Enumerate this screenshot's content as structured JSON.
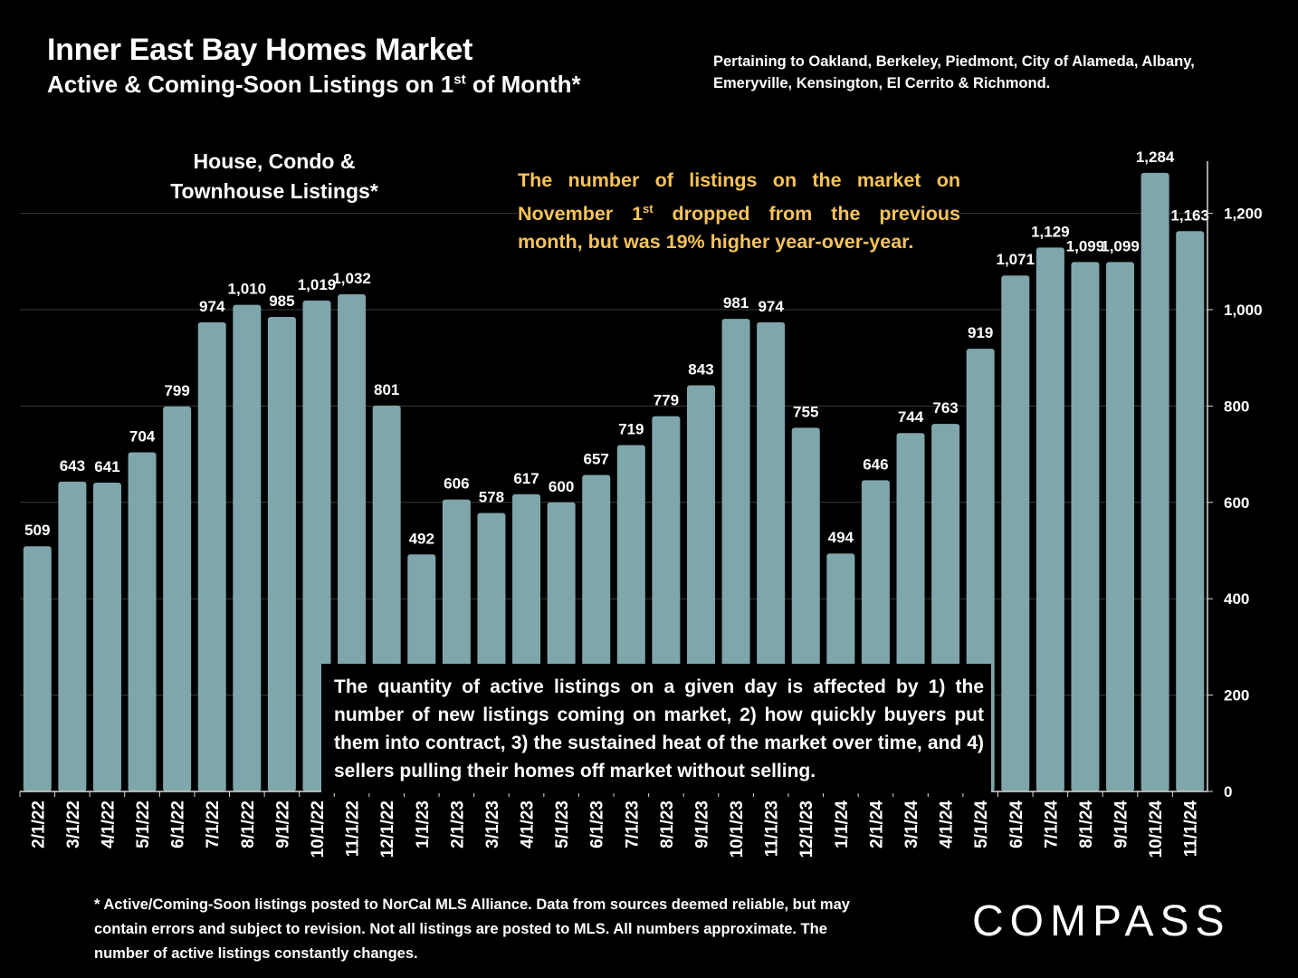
{
  "title": "Inner East Bay Homes Market",
  "subtitle": {
    "prefix": "Active & Coming-Soon Listings on 1",
    "sup": "st",
    "suffix": " of Month*"
  },
  "pertaining_note": "Pertaining to Oakland, Berkeley, Piedmont, City of Alameda, Albany, Emeryville, Kensington, El Cerrito & Richmond.",
  "series_label_line1": "House, Condo &",
  "series_label_line2": "Townhouse Listings*",
  "callout_yellow": {
    "prefix": "The number of listings on the market on November 1",
    "sup": "st",
    "suffix": " dropped from the previous month, but was 19% higher year-over-year."
  },
  "callout_white": "The quantity of active listings on a given day is affected by 1) the number of new listings coming on market, 2) how quickly buyers put them into contract, 3) the sustained heat of the market over time, and 4) sellers pulling their homes off market without selling.",
  "footnote": "* Active/Coming-Soon listings posted to NorCal MLS Alliance.  Data from sources deemed reliable, but may contain errors and subject to revision.  Not all listings are posted to MLS. All numbers approximate. The number of active listings constantly changes.",
  "logo_text": "COMPASS",
  "colors": {
    "background": "#000000",
    "bar": "#7fa6ab",
    "text": "#ffffff",
    "highlight": "#f6c35a"
  },
  "chart_data": {
    "type": "bar",
    "categories": [
      "2/1/22",
      "3/1/22",
      "4/1/22",
      "5/1/22",
      "6/1/22",
      "7/1/22",
      "8/1/22",
      "9/1/22",
      "10/1/22",
      "11/1/22",
      "12/1/22",
      "1/1/23",
      "2/1/23",
      "3/1/23",
      "4/1/23",
      "5/1/23",
      "6/1/23",
      "7/1/23",
      "8/1/23",
      "9/1/23",
      "10/1/23",
      "11/1/23",
      "12/1/23",
      "1/1/24",
      "2/1/24",
      "3/1/24",
      "4/1/24",
      "5/1/24",
      "6/1/24",
      "7/1/24",
      "8/1/24",
      "9/1/24",
      "10/1/24",
      "11/1/24"
    ],
    "values": [
      509,
      643,
      641,
      704,
      799,
      974,
      1010,
      985,
      1019,
      1032,
      801,
      492,
      606,
      578,
      617,
      600,
      657,
      719,
      779,
      843,
      981,
      974,
      755,
      494,
      646,
      744,
      763,
      919,
      1071,
      1129,
      1099,
      1099,
      1284,
      1163
    ],
    "value_labels": [
      "509",
      "643",
      "641",
      "704",
      "799",
      "974",
      "1,010",
      "985",
      "1,019",
      "1,032",
      "801",
      "492",
      "606",
      "578",
      "617",
      "600",
      "657",
      "719",
      "779",
      "843",
      "981",
      "974",
      "755",
      "494",
      "646",
      "744",
      "763",
      "919",
      "1,071",
      "1,129",
      "1,099",
      "1,099",
      "1,284",
      "1,163"
    ],
    "y_ticks": [
      0,
      200,
      400,
      600,
      800,
      1000,
      1200
    ],
    "y_tick_labels": [
      "0",
      "200",
      "400",
      "600",
      "800",
      "1,000",
      "1,200"
    ],
    "ylim": [
      0,
      1300
    ],
    "y_axis_side": "right",
    "grid": true
  }
}
